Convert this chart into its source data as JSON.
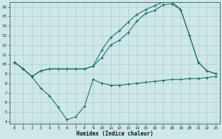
{
  "xlabel": "Humidex (Indice chaleur)",
  "xlim": [
    -0.5,
    23.5
  ],
  "ylim": [
    3.8,
    16.5
  ],
  "xticks": [
    0,
    1,
    2,
    3,
    4,
    5,
    6,
    7,
    8,
    9,
    10,
    11,
    12,
    13,
    14,
    15,
    16,
    17,
    18,
    19,
    20,
    21,
    22,
    23
  ],
  "yticks": [
    4,
    5,
    6,
    7,
    8,
    9,
    10,
    11,
    12,
    13,
    14,
    15,
    16
  ],
  "bg_color": "#cce8e8",
  "line_color": "#1a6e65",
  "s1_x": [
    0,
    1,
    2,
    3,
    4,
    5,
    6,
    7,
    8,
    9,
    10,
    11,
    12,
    13,
    14,
    15,
    16,
    17,
    18,
    19,
    20,
    21,
    22,
    23
  ],
  "s1_y": [
    10.2,
    9.5,
    8.7,
    7.5,
    6.7,
    5.5,
    4.2,
    4.5,
    5.6,
    8.4,
    8.0,
    7.8,
    7.8,
    7.9,
    8.0,
    8.1,
    8.2,
    8.3,
    8.4,
    8.4,
    8.5,
    8.5,
    8.6,
    8.7
  ],
  "s2_x": [
    0,
    1,
    2,
    3,
    4,
    5,
    6,
    7,
    8,
    9,
    10,
    11,
    12,
    13,
    14,
    15,
    16,
    17,
    18,
    19,
    20,
    21,
    22,
    23
  ],
  "s2_y": [
    10.2,
    9.5,
    8.7,
    9.3,
    9.5,
    9.5,
    9.5,
    9.5,
    9.5,
    9.8,
    10.7,
    12.0,
    12.5,
    13.3,
    14.5,
    15.3,
    15.6,
    16.2,
    16.3,
    15.7,
    13.0,
    10.2,
    9.3,
    9.0
  ],
  "s3_x": [
    0,
    1,
    2,
    3,
    4,
    5,
    6,
    7,
    8,
    9,
    10,
    11,
    12,
    13,
    14,
    15,
    16,
    17,
    18,
    19,
    20,
    21,
    22,
    23
  ],
  "s3_y": [
    10.2,
    9.5,
    8.7,
    9.3,
    9.5,
    9.5,
    9.5,
    9.5,
    9.5,
    9.8,
    11.5,
    12.8,
    13.5,
    14.4,
    15.2,
    15.7,
    16.1,
    16.5,
    16.5,
    15.7,
    13.0,
    10.2,
    9.3,
    9.0
  ]
}
